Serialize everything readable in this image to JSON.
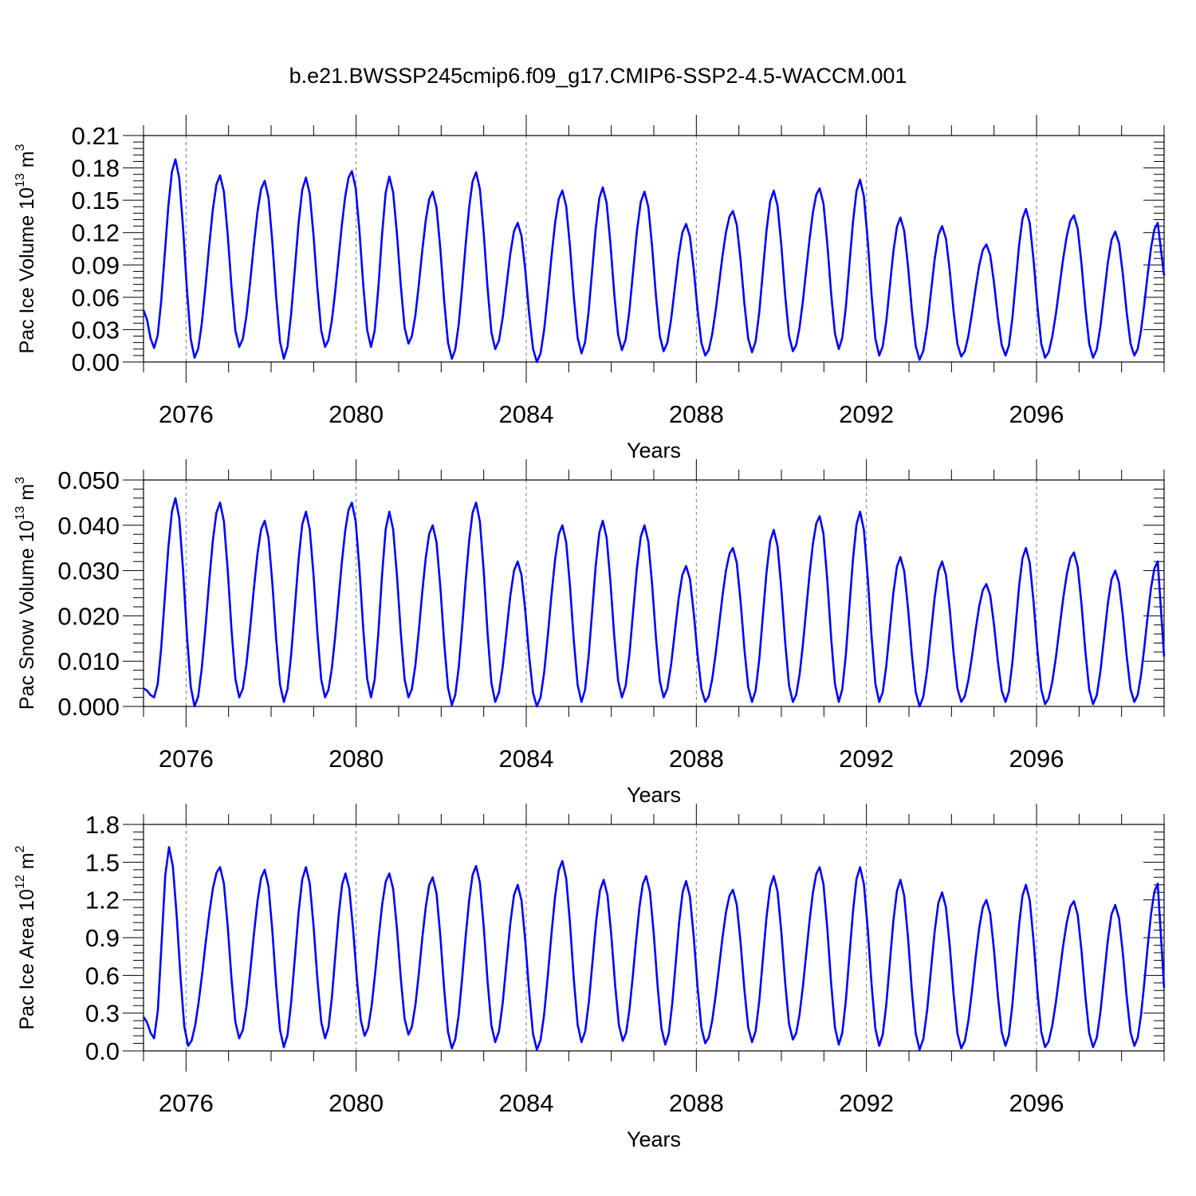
{
  "title": "b.e21.BWSSP245cmip6.f09_g17.CMIP6-SSP2-4.5-WACCM.001",
  "colors": {
    "series": "#0000ff",
    "axis": "#000000",
    "refline": "#777777"
  },
  "chart_data": [
    {
      "type": "line",
      "ylabel_main": "Pac Ice Volume 10",
      "ylabel_exp": "13",
      "ylabel_unit": " m",
      "ylabel_unit_exp": "3",
      "xlabel": "Years",
      "xlim": [
        2075,
        2099
      ],
      "ylim": [
        0,
        0.21
      ],
      "yticks": [
        0,
        0.03,
        0.06,
        0.09,
        0.12,
        0.15,
        0.18,
        0.21
      ],
      "ytick_labels": [
        "0.00",
        "0.03",
        "0.06",
        "0.09",
        "0.12",
        "0.15",
        "0.18",
        "0.21"
      ],
      "xticks": [
        2076,
        2080,
        2084,
        2088,
        2092,
        2096
      ],
      "xtick_labels": [
        "2076",
        "2080",
        "2084",
        "2088",
        "2092",
        "2096"
      ],
      "grid_x": true,
      "peak_x_offsets": [
        0.75,
        0.8,
        0.85,
        0.82,
        0.9,
        0.78,
        0.8,
        0.82,
        0.8,
        0.85,
        0.8,
        0.78,
        0.76,
        0.86,
        0.82,
        0.9,
        0.85,
        0.8,
        0.78,
        0.82,
        0.75,
        0.88,
        0.85,
        0.85
      ],
      "peaks": [
        0.188,
        0.173,
        0.168,
        0.171,
        0.177,
        0.172,
        0.158,
        0.176,
        0.129,
        0.159,
        0.162,
        0.158,
        0.128,
        0.14,
        0.159,
        0.161,
        0.169,
        0.134,
        0.126,
        0.109,
        0.142,
        0.136,
        0.121,
        0.129
      ],
      "troughs": [
        0.013,
        0.004,
        0.014,
        0.003,
        0.014,
        0.014,
        0.017,
        0.003,
        0.012,
        0.0,
        0.008,
        0.011,
        0.01,
        0.006,
        0.009,
        0.01,
        0.012,
        0.006,
        0.002,
        0.005,
        0.006,
        0.004,
        0.004,
        0.006
      ],
      "start_value": 0.048,
      "end_value": 0.08
    },
    {
      "type": "line",
      "ylabel_main": "Pac Snow Volume 10",
      "ylabel_exp": "13",
      "ylabel_unit": " m",
      "ylabel_unit_exp": "3",
      "xlabel": "Years",
      "xlim": [
        2075,
        2099
      ],
      "ylim": [
        0,
        0.05
      ],
      "yticks": [
        0,
        0.01,
        0.02,
        0.03,
        0.04,
        0.05
      ],
      "ytick_labels": [
        "0.000",
        "0.010",
        "0.020",
        "0.030",
        "0.040",
        "0.050"
      ],
      "xticks": [
        2076,
        2080,
        2084,
        2088,
        2092,
        2096
      ],
      "xtick_labels": [
        "2076",
        "2080",
        "2084",
        "2088",
        "2092",
        "2096"
      ],
      "grid_x": true,
      "peak_x_offsets": [
        0.75,
        0.8,
        0.85,
        0.82,
        0.9,
        0.78,
        0.8,
        0.82,
        0.8,
        0.85,
        0.8,
        0.78,
        0.76,
        0.86,
        0.82,
        0.9,
        0.85,
        0.8,
        0.78,
        0.82,
        0.75,
        0.88,
        0.85,
        0.85
      ],
      "peaks": [
        0.046,
        0.045,
        0.041,
        0.043,
        0.045,
        0.043,
        0.04,
        0.045,
        0.032,
        0.04,
        0.041,
        0.04,
        0.031,
        0.035,
        0.039,
        0.042,
        0.043,
        0.033,
        0.032,
        0.027,
        0.035,
        0.034,
        0.03,
        0.032
      ],
      "troughs": [
        0.002,
        0.0,
        0.002,
        0.001,
        0.002,
        0.002,
        0.002,
        0.0003,
        0.001,
        0.0,
        0.001,
        0.002,
        0.002,
        0.001,
        0.001,
        0.001,
        0.001,
        0.001,
        0.0,
        0.001,
        0.001,
        0.0005,
        0.0005,
        0.001
      ],
      "start_value": 0.004,
      "end_value": 0.011
    },
    {
      "type": "line",
      "ylabel_main": "Pac Ice Area 10",
      "ylabel_exp": "12",
      "ylabel_unit": " m",
      "ylabel_unit_exp": "2",
      "xlabel": "Years",
      "xlim": [
        2075,
        2099
      ],
      "ylim": [
        0,
        1.8
      ],
      "yticks": [
        0,
        0.3,
        0.6,
        0.9,
        1.2,
        1.5,
        1.8
      ],
      "ytick_labels": [
        "0.0",
        "0.3",
        "0.6",
        "0.9",
        "1.2",
        "1.5",
        "1.8"
      ],
      "xticks": [
        2076,
        2080,
        2084,
        2088,
        2092,
        2096
      ],
      "xtick_labels": [
        "2076",
        "2080",
        "2084",
        "2088",
        "2092",
        "2096"
      ],
      "grid_x": true,
      "peak_x_offsets": [
        0.6,
        0.8,
        0.85,
        0.82,
        0.75,
        0.78,
        0.8,
        0.82,
        0.8,
        0.85,
        0.82,
        0.82,
        0.76,
        0.86,
        0.82,
        0.9,
        0.85,
        0.8,
        0.78,
        0.82,
        0.75,
        0.88,
        0.85,
        0.85
      ],
      "peaks": [
        1.62,
        1.46,
        1.44,
        1.46,
        1.41,
        1.41,
        1.38,
        1.47,
        1.32,
        1.51,
        1.36,
        1.39,
        1.35,
        1.28,
        1.39,
        1.46,
        1.46,
        1.36,
        1.26,
        1.2,
        1.32,
        1.19,
        1.16,
        1.33
      ],
      "troughs": [
        0.1,
        0.04,
        0.1,
        0.03,
        0.1,
        0.12,
        0.13,
        0.02,
        0.07,
        0.01,
        0.07,
        0.08,
        0.05,
        0.06,
        0.07,
        0.09,
        0.05,
        0.04,
        0.01,
        0.02,
        0.04,
        0.03,
        0.03,
        0.04
      ],
      "start_value": 0.27,
      "end_value": 0.5
    }
  ]
}
